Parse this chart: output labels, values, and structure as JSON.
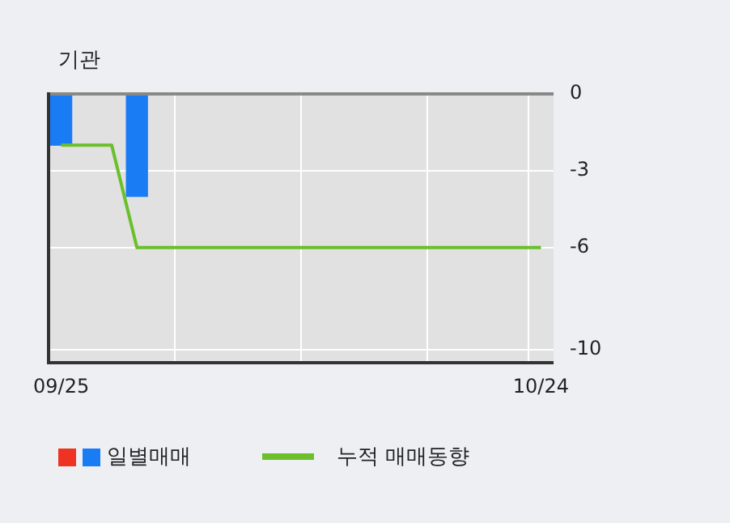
{
  "chart_data": {
    "type": "bar",
    "ylabel": "기관",
    "categories": [
      "09/25",
      null,
      null,
      null,
      null,
      null,
      null,
      null,
      null,
      null,
      null,
      null,
      null,
      null,
      null,
      null,
      null,
      null,
      null,
      "10/24"
    ],
    "series": [
      {
        "name": "일별매매",
        "color": "#1a7cf5",
        "values": [
          -2,
          0,
          0,
          -4,
          0,
          0,
          0,
          0,
          0,
          0,
          0,
          0,
          0,
          0,
          0,
          0,
          0,
          0,
          0,
          0
        ]
      },
      {
        "name": "누적 매매동향",
        "type": "line",
        "color": "#6abf2a",
        "values": [
          -2,
          -2,
          -2,
          -6,
          -6,
          -6,
          -6,
          -6,
          -6,
          -6,
          -6,
          -6,
          -6,
          -6,
          -6,
          -6,
          -6,
          -6,
          -6,
          -6
        ]
      }
    ],
    "ylim": [
      -10.5,
      0
    ],
    "yticks": [
      0,
      -3,
      -6,
      -10
    ],
    "grid": true,
    "legend": "bottom",
    "marker": "none"
  }
}
